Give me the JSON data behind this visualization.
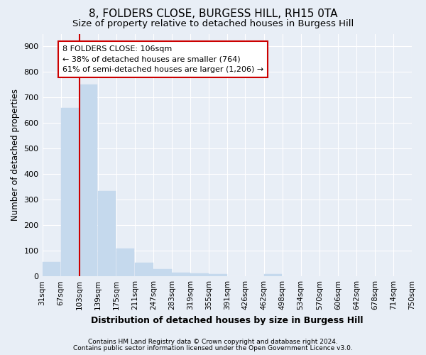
{
  "title": "8, FOLDERS CLOSE, BURGESS HILL, RH15 0TA",
  "subtitle": "Size of property relative to detached houses in Burgess Hill",
  "xlabel": "Distribution of detached houses by size in Burgess Hill",
  "ylabel": "Number of detached properties",
  "footnote1": "Contains HM Land Registry data © Crown copyright and database right 2024.",
  "footnote2": "Contains public sector information licensed under the Open Government Licence v3.0.",
  "annotation_line1": "8 FOLDERS CLOSE: 106sqm",
  "annotation_line2": "← 38% of detached houses are smaller (764)",
  "annotation_line3": "61% of semi-detached houses are larger (1,206) →",
  "bar_color": "#c5d9ed",
  "property_line_color": "#cc0000",
  "property_line_x": 103,
  "bin_edges": [
    31,
    67,
    103,
    139,
    175,
    211,
    247,
    283,
    319,
    355,
    391,
    426,
    462,
    498,
    534,
    570,
    606,
    642,
    678,
    714,
    750
  ],
  "bin_labels": [
    "31sqm",
    "67sqm",
    "103sqm",
    "139sqm",
    "175sqm",
    "211sqm",
    "247sqm",
    "283sqm",
    "319sqm",
    "355sqm",
    "391sqm",
    "426sqm",
    "462sqm",
    "498sqm",
    "534sqm",
    "570sqm",
    "606sqm",
    "642sqm",
    "678sqm",
    "714sqm",
    "750sqm"
  ],
  "bar_heights": [
    55,
    660,
    750,
    335,
    108,
    53,
    27,
    15,
    12,
    8,
    0,
    0,
    8,
    0,
    0,
    0,
    0,
    0,
    0,
    0
  ],
  "ylim": [
    0,
    950
  ],
  "yticks": [
    0,
    100,
    200,
    300,
    400,
    500,
    600,
    700,
    800,
    900
  ],
  "bg_color": "#e8eef6",
  "grid_color": "#ffffff",
  "annotation_box_edgecolor": "#cc0000",
  "title_fontsize": 11,
  "subtitle_fontsize": 9.5,
  "ylabel_fontsize": 8.5,
  "xlabel_fontsize": 9,
  "tick_fontsize": 8,
  "xtick_fontsize": 7.5,
  "footnote_fontsize": 6.5
}
